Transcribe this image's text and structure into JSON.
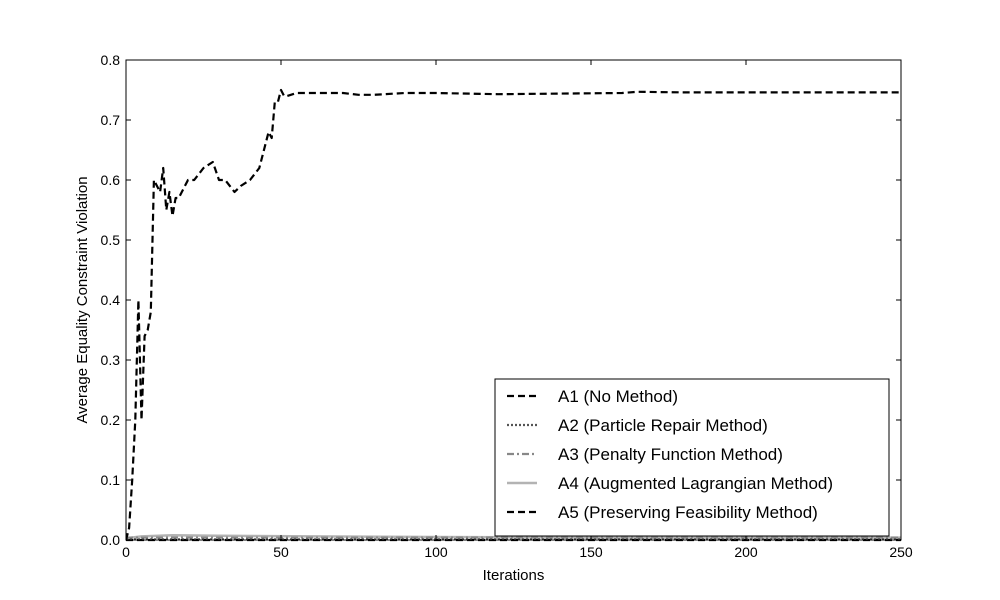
{
  "chart_data": {
    "type": "line",
    "title": "",
    "xlabel": "Iterations",
    "ylabel": "Average Equality Constraint Violation",
    "xlim": [
      0,
      250
    ],
    "ylim": [
      0,
      0.8
    ],
    "xticks": [
      0,
      50,
      100,
      150,
      200,
      250
    ],
    "yticks": [
      0.0,
      0.1,
      0.2,
      0.3,
      0.4,
      0.5,
      0.6,
      0.7,
      0.8
    ],
    "xtick_labels": [
      "0",
      "50",
      "100",
      "150",
      "200",
      "250"
    ],
    "ytick_labels": [
      "0.0",
      "0.1",
      "0.2",
      "0.3",
      "0.4",
      "0.5",
      "0.6",
      "0.7",
      "0.8"
    ],
    "grid": false,
    "legend_position": "lower-right",
    "series": [
      {
        "name": "A1 (No Method)",
        "color": "#000000",
        "style": "dashed",
        "x": [
          0,
          1,
          2,
          3,
          4,
          5,
          6,
          7,
          8,
          9,
          10,
          11,
          12,
          13,
          14,
          15,
          16,
          17,
          18,
          20,
          22,
          25,
          28,
          30,
          32,
          35,
          37,
          40,
          43,
          46,
          47,
          48,
          49,
          50,
          51,
          52,
          55,
          60,
          65,
          70,
          75,
          80,
          90,
          100,
          120,
          140,
          160,
          165,
          180,
          200,
          220,
          250
        ],
        "y": [
          0.0,
          0.02,
          0.1,
          0.2,
          0.4,
          0.2,
          0.34,
          0.35,
          0.38,
          0.6,
          0.59,
          0.58,
          0.62,
          0.55,
          0.58,
          0.54,
          0.57,
          0.57,
          0.58,
          0.6,
          0.6,
          0.62,
          0.63,
          0.6,
          0.6,
          0.58,
          0.59,
          0.6,
          0.62,
          0.68,
          0.67,
          0.73,
          0.73,
          0.75,
          0.74,
          0.74,
          0.745,
          0.745,
          0.745,
          0.745,
          0.742,
          0.742,
          0.745,
          0.745,
          0.743,
          0.744,
          0.745,
          0.747,
          0.746,
          0.746,
          0.746,
          0.746
        ]
      },
      {
        "name": "A2 (Particle Repair Method)",
        "color": "#555555",
        "style": "dotted",
        "x": [
          0,
          250
        ],
        "y": [
          0.001,
          0.001
        ]
      },
      {
        "name": "A3 (Penalty Function Method)",
        "color": "#888888",
        "style": "dashdot",
        "x": [
          0,
          250
        ],
        "y": [
          0.004,
          0.004
        ]
      },
      {
        "name": "A4 (Augmented Lagrangian Method)",
        "color": "#b3b3b3",
        "style": "solid",
        "x": [
          0,
          5,
          15,
          30,
          60,
          100,
          150,
          200,
          250
        ],
        "y": [
          0.003,
          0.006,
          0.008,
          0.007,
          0.006,
          0.005,
          0.004,
          0.004,
          0.004
        ]
      },
      {
        "name": "A5 (Preserving Feasibility Method)",
        "color": "#000000",
        "style": "dashed",
        "x": [
          0,
          250
        ],
        "y": [
          0.0,
          0.0
        ]
      }
    ]
  }
}
